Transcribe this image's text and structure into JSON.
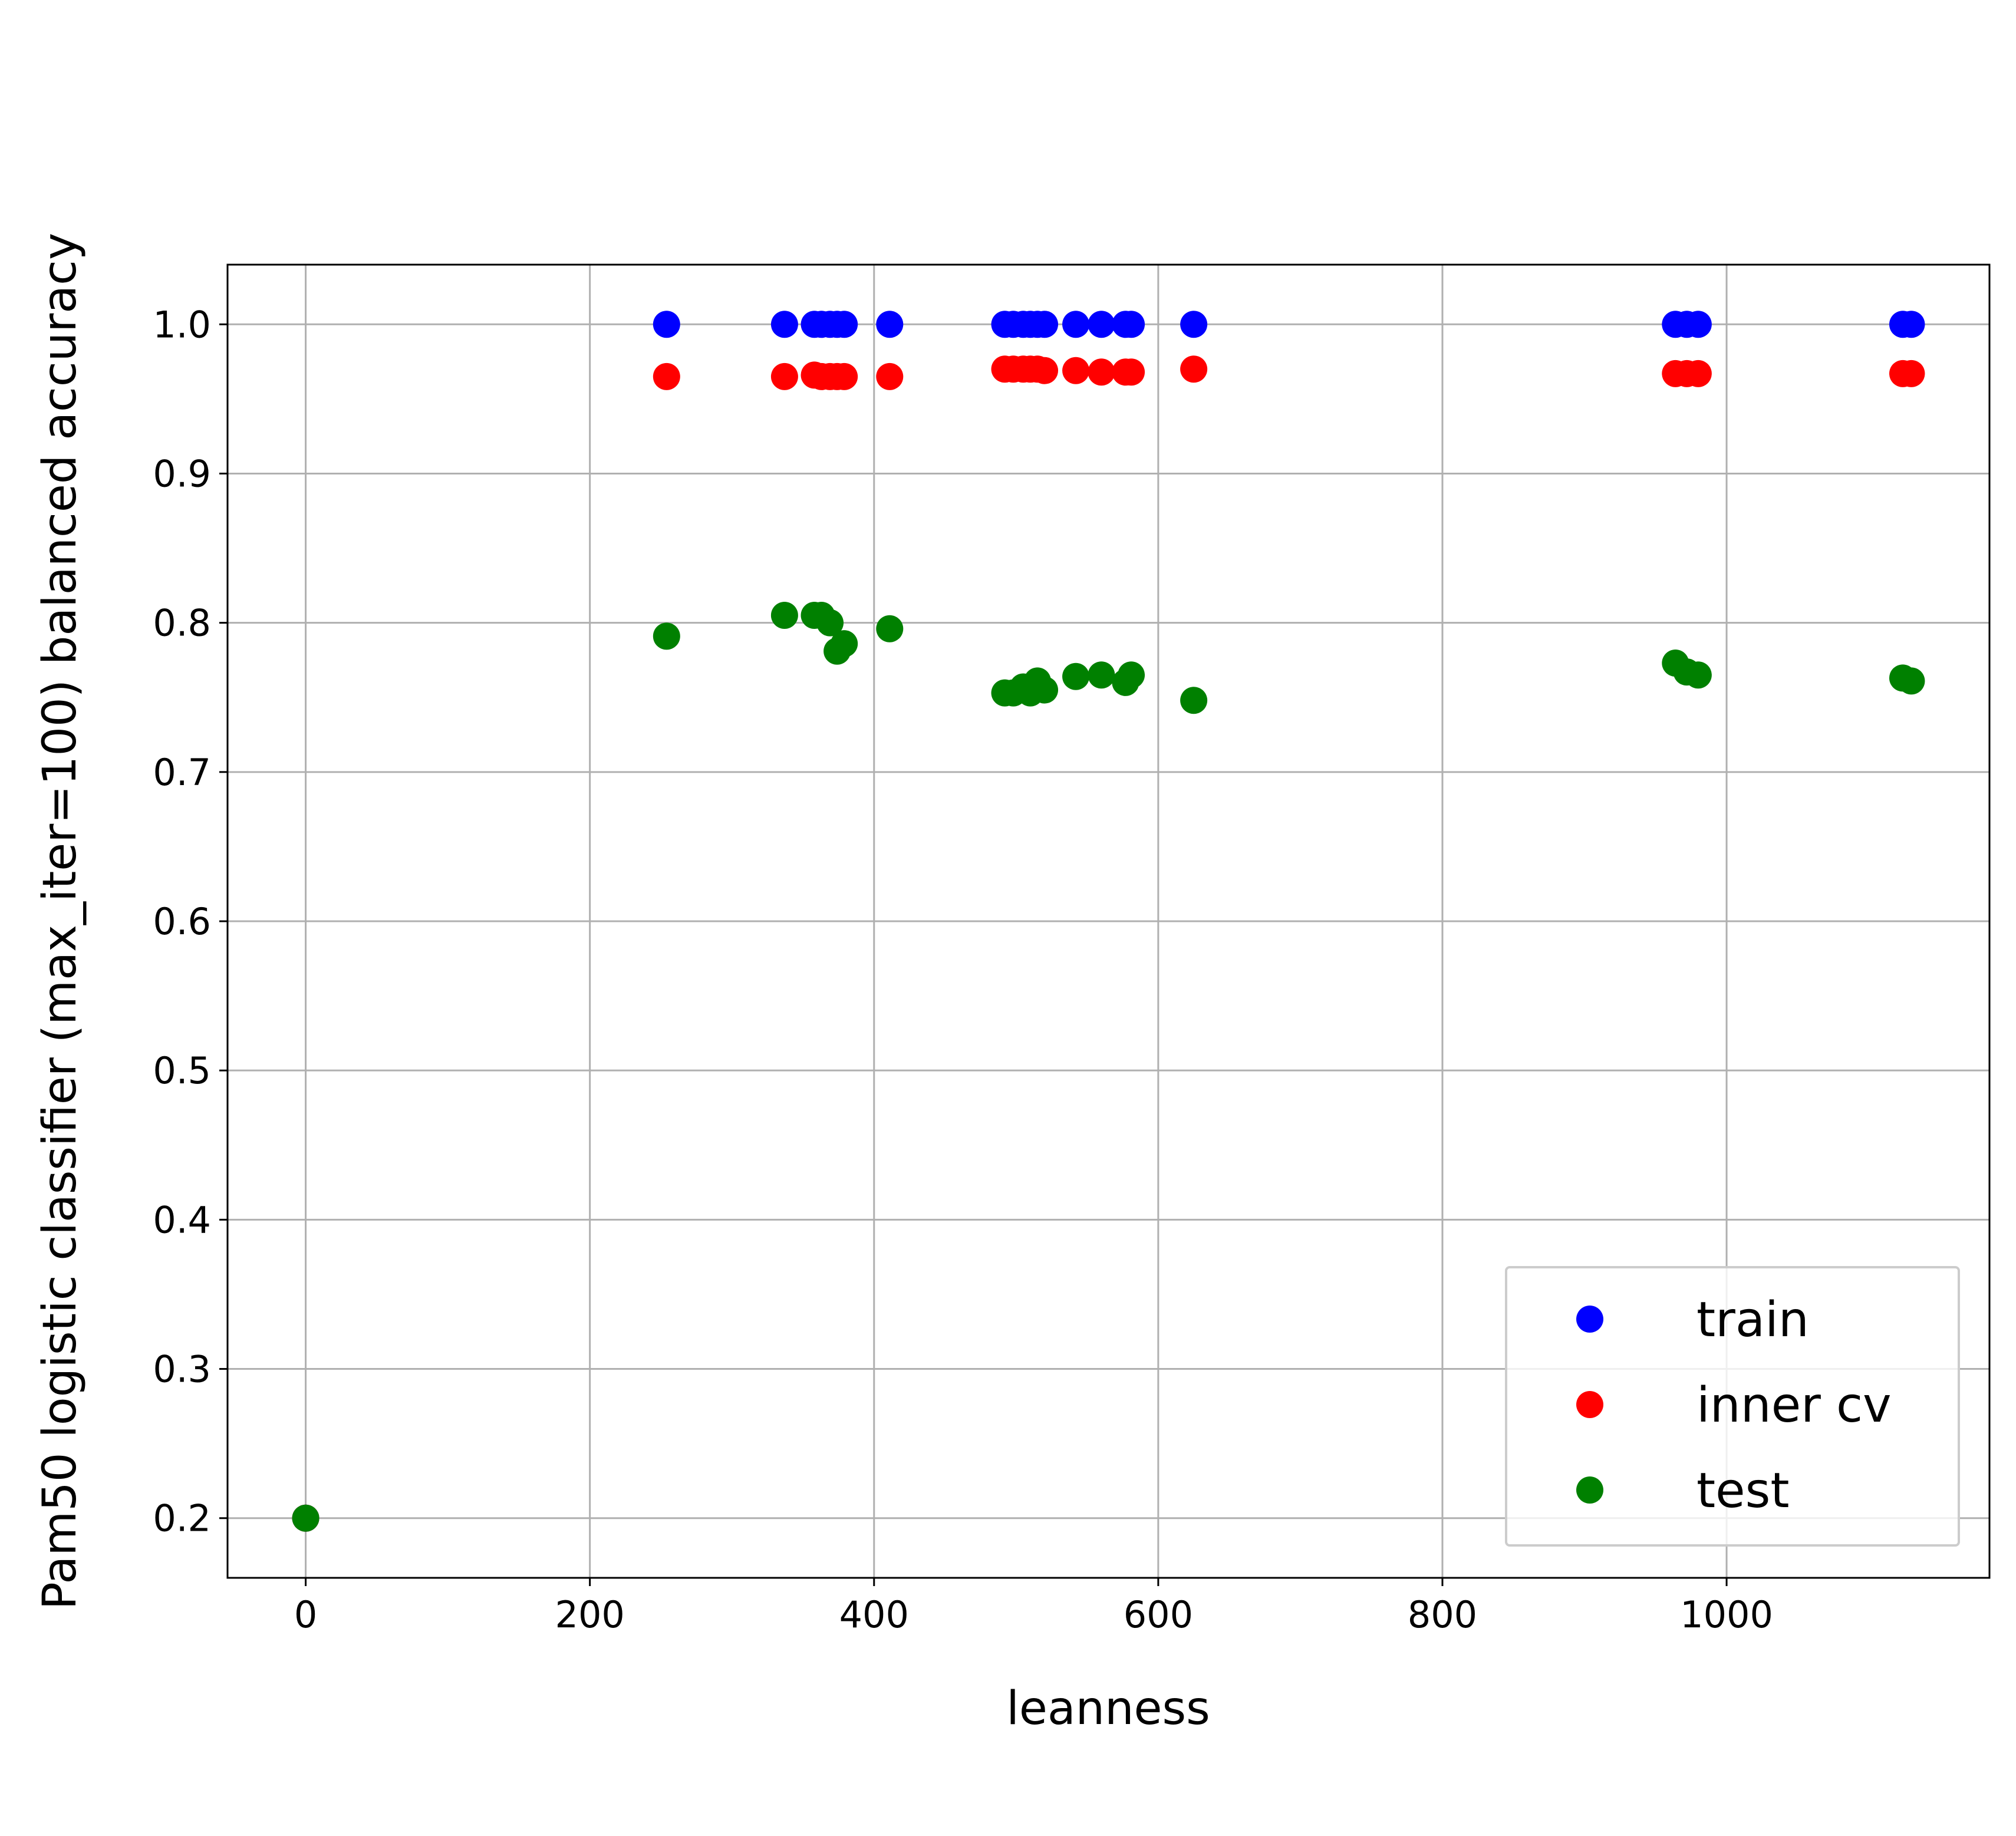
{
  "chart_data": {
    "type": "scatter",
    "title": "",
    "xlabel": "leanness",
    "ylabel": "Pam50 logistic classifier (max_iter=100) balanced accuracy",
    "xlim": [
      -55,
      1185
    ],
    "ylim": [
      0.16,
      1.04
    ],
    "xticks": [
      0,
      200,
      400,
      600,
      800,
      1000
    ],
    "xtick_labels": [
      "0",
      "200",
      "400",
      "600",
      "800",
      "1000"
    ],
    "yticks": [
      0.2,
      0.3,
      0.4,
      0.5,
      0.6,
      0.7,
      0.8,
      0.9,
      1.0
    ],
    "ytick_labels": [
      "0.2",
      "0.3",
      "0.4",
      "0.5",
      "0.6",
      "0.7",
      "0.8",
      "0.9",
      "1.0"
    ],
    "grid": true,
    "legend_position": "lower-right",
    "series": [
      {
        "name": "train",
        "color": "#0000ff",
        "points": [
          [
            0,
            0.2
          ],
          [
            254,
            1.0
          ],
          [
            337,
            1.0
          ],
          [
            358,
            1.0
          ],
          [
            363,
            1.0
          ],
          [
            369,
            1.0
          ],
          [
            374,
            1.0
          ],
          [
            379,
            1.0
          ],
          [
            411,
            1.0
          ],
          [
            492,
            1.0
          ],
          [
            498,
            1.0
          ],
          [
            505,
            1.0
          ],
          [
            510,
            1.0
          ],
          [
            515,
            1.0
          ],
          [
            520,
            1.0
          ],
          [
            542,
            1.0
          ],
          [
            560,
            1.0
          ],
          [
            577,
            1.0
          ],
          [
            581,
            1.0
          ],
          [
            625,
            1.0
          ],
          [
            964,
            1.0
          ],
          [
            972,
            1.0
          ],
          [
            980,
            1.0
          ],
          [
            1124,
            1.0
          ],
          [
            1130,
            1.0
          ]
        ]
      },
      {
        "name": "inner cv",
        "color": "#ff0000",
        "points": [
          [
            0,
            0.2
          ],
          [
            254,
            0.965
          ],
          [
            337,
            0.965
          ],
          [
            358,
            0.966
          ],
          [
            363,
            0.965
          ],
          [
            369,
            0.965
          ],
          [
            374,
            0.965
          ],
          [
            379,
            0.965
          ],
          [
            411,
            0.965
          ],
          [
            492,
            0.97
          ],
          [
            498,
            0.97
          ],
          [
            505,
            0.97
          ],
          [
            510,
            0.97
          ],
          [
            515,
            0.97
          ],
          [
            520,
            0.969
          ],
          [
            542,
            0.969
          ],
          [
            560,
            0.968
          ],
          [
            577,
            0.968
          ],
          [
            581,
            0.968
          ],
          [
            625,
            0.97
          ],
          [
            964,
            0.967
          ],
          [
            972,
            0.967
          ],
          [
            980,
            0.967
          ],
          [
            1124,
            0.967
          ],
          [
            1130,
            0.967
          ]
        ]
      },
      {
        "name": "test",
        "color": "#008000",
        "points": [
          [
            0,
            0.2
          ],
          [
            254,
            0.791
          ],
          [
            337,
            0.805
          ],
          [
            358,
            0.805
          ],
          [
            363,
            0.805
          ],
          [
            369,
            0.8
          ],
          [
            374,
            0.781
          ],
          [
            379,
            0.786
          ],
          [
            411,
            0.796
          ],
          [
            492,
            0.753
          ],
          [
            498,
            0.753
          ],
          [
            505,
            0.757
          ],
          [
            510,
            0.753
          ],
          [
            515,
            0.761
          ],
          [
            520,
            0.755
          ],
          [
            542,
            0.764
          ],
          [
            560,
            0.765
          ],
          [
            577,
            0.76
          ],
          [
            581,
            0.765
          ],
          [
            625,
            0.748
          ],
          [
            964,
            0.773
          ],
          [
            972,
            0.767
          ],
          [
            980,
            0.765
          ],
          [
            1124,
            0.763
          ],
          [
            1130,
            0.761
          ]
        ]
      }
    ]
  }
}
